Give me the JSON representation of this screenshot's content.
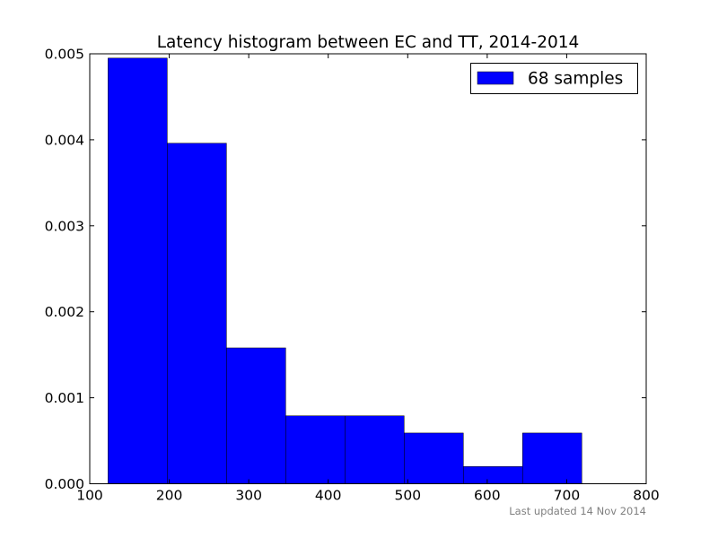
{
  "chart_data": {
    "type": "bar",
    "title": "Latency histogram between EC and TT, 2014-2014",
    "xlabel": "",
    "ylabel": "",
    "xlim": [
      100,
      800
    ],
    "ylim": [
      0,
      0.005
    ],
    "xticks": [
      100,
      200,
      300,
      400,
      500,
      600,
      700,
      800
    ],
    "xtick_labels": [
      "100",
      "200",
      "300",
      "400",
      "500",
      "600",
      "700",
      "800"
    ],
    "yticks": [
      0,
      0.001,
      0.002,
      0.003,
      0.004,
      0.005
    ],
    "ytick_labels": [
      "0.000",
      "0.001",
      "0.002",
      "0.003",
      "0.004",
      "0.005"
    ],
    "bin_edges": [
      123,
      197.5,
      272,
      346.5,
      421,
      495.5,
      570,
      644.5,
      719
    ],
    "series": [
      {
        "name": "68 samples",
        "color": "#0000ff",
        "values": [
          0.00495,
          0.00396,
          0.00158,
          0.00079,
          0.00079,
          0.00059,
          0.0002,
          0.00059
        ]
      }
    ],
    "grid": false,
    "legend_position": "top-right",
    "footnote": "Last updated 14 Nov 2014"
  }
}
